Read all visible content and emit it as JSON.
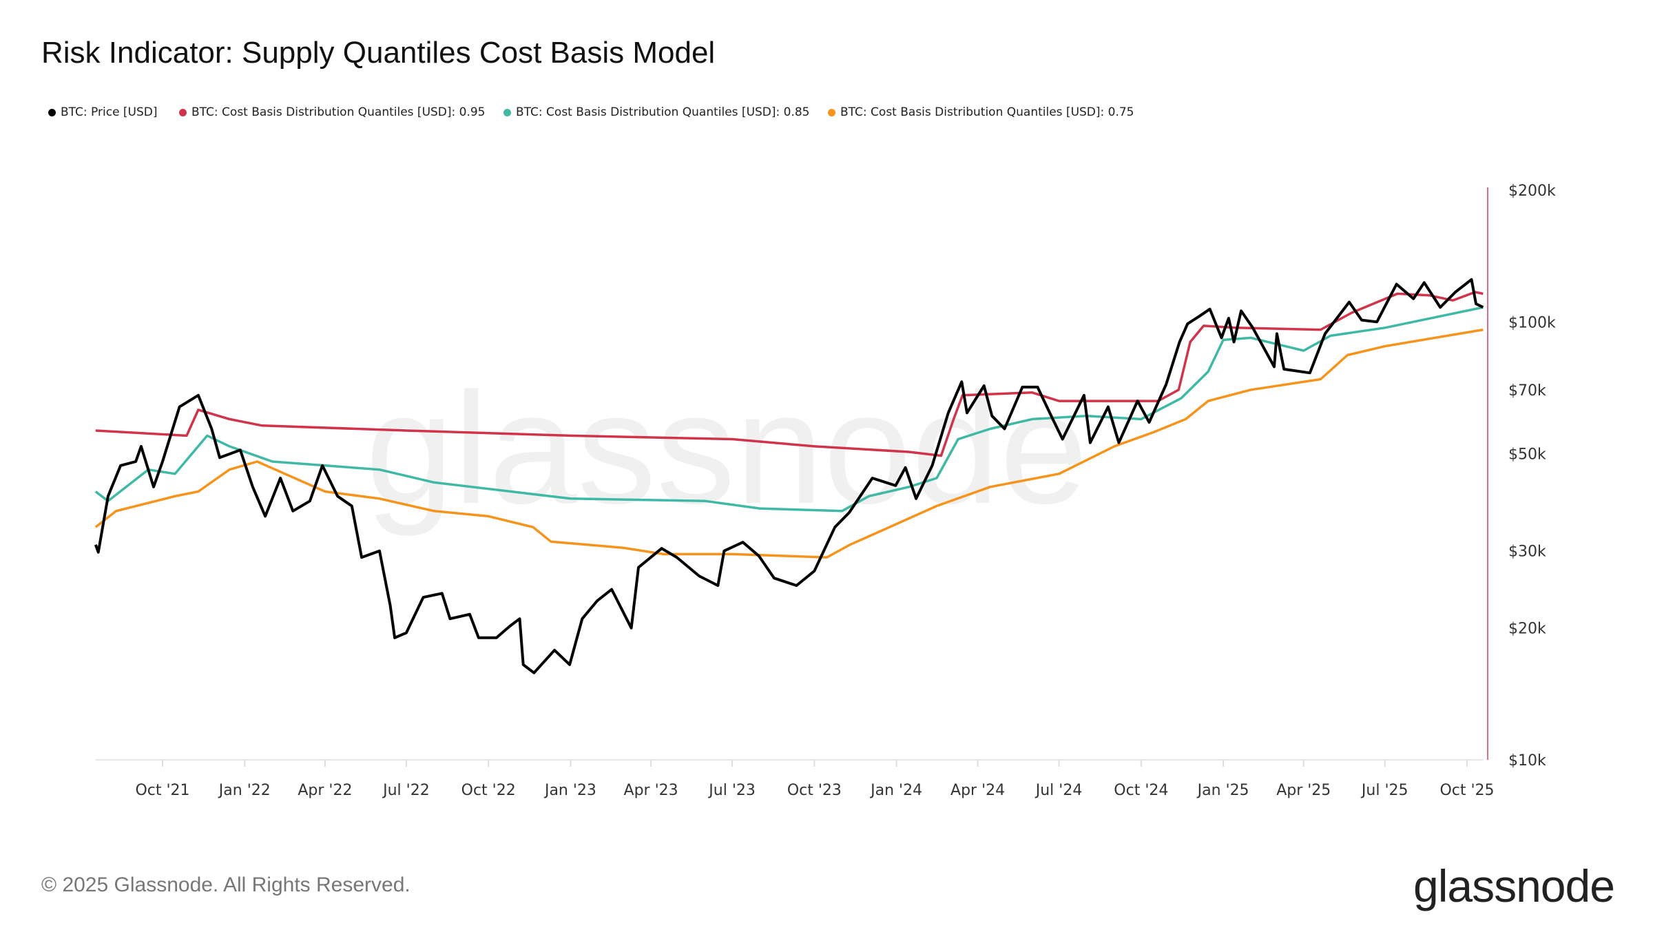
{
  "title": "Risk Indicator: Supply Quantiles Cost Basis Model",
  "copyright": "© 2025 Glassnode. All Rights Reserved.",
  "logo": "glassnode",
  "watermark": "glassnode",
  "chart_data": {
    "type": "line",
    "title": "Risk Indicator: Supply Quantiles Cost Basis Model",
    "y_scale": "log",
    "ylim": [
      10000,
      200000
    ],
    "y_ticks": [
      {
        "v": 200000,
        "label": "$200k"
      },
      {
        "v": 100000,
        "label": "$100k"
      },
      {
        "v": 70000,
        "label": "$70k"
      },
      {
        "v": 50000,
        "label": "$50k"
      },
      {
        "v": 30000,
        "label": "$30k"
      },
      {
        "v": 20000,
        "label": "$20k"
      },
      {
        "v": 10000,
        "label": "$10k"
      }
    ],
    "x_range": [
      "2021-07-18",
      "2025-10-19"
    ],
    "x_ticks": [
      {
        "d": "2021-10-01",
        "label": "Oct '21"
      },
      {
        "d": "2022-01-01",
        "label": "Jan '22"
      },
      {
        "d": "2022-04-01",
        "label": "Apr '22"
      },
      {
        "d": "2022-07-01",
        "label": "Jul '22"
      },
      {
        "d": "2022-10-01",
        "label": "Oct '22"
      },
      {
        "d": "2023-01-01",
        "label": "Jan '23"
      },
      {
        "d": "2023-04-01",
        "label": "Apr '23"
      },
      {
        "d": "2023-07-01",
        "label": "Jul '23"
      },
      {
        "d": "2023-10-01",
        "label": "Oct '23"
      },
      {
        "d": "2024-01-01",
        "label": "Jan '24"
      },
      {
        "d": "2024-04-01",
        "label": "Apr '24"
      },
      {
        "d": "2024-07-01",
        "label": "Jul '24"
      },
      {
        "d": "2024-10-01",
        "label": "Oct '24"
      },
      {
        "d": "2025-01-01",
        "label": "Jan '25"
      },
      {
        "d": "2025-04-01",
        "label": "Apr '25"
      },
      {
        "d": "2025-07-01",
        "label": "Jul '25"
      },
      {
        "d": "2025-10-01",
        "label": "Oct '25"
      }
    ],
    "grid": false,
    "legend_placement": "top-left",
    "series": [
      {
        "name": "BTC: Price [USD]",
        "color": "#000000",
        "points": [
          [
            "2021-07-18",
            31000
          ],
          [
            "2021-07-21",
            29800
          ],
          [
            "2021-08-01",
            40000
          ],
          [
            "2021-08-15",
            47000
          ],
          [
            "2021-09-01",
            48000
          ],
          [
            "2021-09-07",
            52000
          ],
          [
            "2021-09-21",
            42000
          ],
          [
            "2021-10-01",
            48000
          ],
          [
            "2021-10-20",
            64000
          ],
          [
            "2021-11-10",
            68000
          ],
          [
            "2021-11-25",
            57000
          ],
          [
            "2021-12-04",
            49000
          ],
          [
            "2021-12-27",
            51000
          ],
          [
            "2022-01-10",
            42000
          ],
          [
            "2022-01-24",
            36000
          ],
          [
            "2022-02-10",
            44000
          ],
          [
            "2022-02-24",
            37000
          ],
          [
            "2022-03-15",
            39000
          ],
          [
            "2022-03-29",
            47000
          ],
          [
            "2022-04-15",
            40000
          ],
          [
            "2022-05-01",
            38000
          ],
          [
            "2022-05-12",
            29000
          ],
          [
            "2022-06-01",
            30000
          ],
          [
            "2022-06-13",
            22500
          ],
          [
            "2022-06-18",
            19000
          ],
          [
            "2022-07-01",
            19500
          ],
          [
            "2022-07-20",
            23500
          ],
          [
            "2022-08-10",
            24000
          ],
          [
            "2022-08-19",
            21000
          ],
          [
            "2022-09-10",
            21500
          ],
          [
            "2022-09-20",
            19000
          ],
          [
            "2022-10-10",
            19000
          ],
          [
            "2022-10-25",
            20200
          ],
          [
            "2022-11-05",
            21000
          ],
          [
            "2022-11-09",
            16500
          ],
          [
            "2022-11-21",
            15800
          ],
          [
            "2022-12-14",
            17800
          ],
          [
            "2022-12-31",
            16500
          ],
          [
            "2023-01-14",
            21000
          ],
          [
            "2023-01-31",
            23100
          ],
          [
            "2023-02-16",
            24500
          ],
          [
            "2023-03-10",
            20000
          ],
          [
            "2023-03-18",
            27500
          ],
          [
            "2023-04-13",
            30400
          ],
          [
            "2023-04-30",
            29000
          ],
          [
            "2023-05-25",
            26300
          ],
          [
            "2023-06-15",
            25000
          ],
          [
            "2023-06-22",
            30000
          ],
          [
            "2023-07-13",
            31400
          ],
          [
            "2023-07-31",
            29200
          ],
          [
            "2023-08-17",
            26000
          ],
          [
            "2023-09-11",
            25000
          ],
          [
            "2023-10-01",
            27000
          ],
          [
            "2023-10-24",
            34000
          ],
          [
            "2023-11-09",
            36700
          ],
          [
            "2023-12-05",
            44000
          ],
          [
            "2023-12-31",
            42300
          ],
          [
            "2024-01-11",
            46500
          ],
          [
            "2024-01-23",
            39500
          ],
          [
            "2024-02-10",
            47000
          ],
          [
            "2024-02-28",
            62000
          ],
          [
            "2024-03-14",
            73000
          ],
          [
            "2024-03-20",
            62000
          ],
          [
            "2024-04-08",
            71500
          ],
          [
            "2024-04-17",
            61000
          ],
          [
            "2024-05-01",
            57000
          ],
          [
            "2024-05-21",
            71000
          ],
          [
            "2024-06-07",
            71000
          ],
          [
            "2024-06-24",
            60000
          ],
          [
            "2024-07-05",
            54000
          ],
          [
            "2024-07-29",
            68000
          ],
          [
            "2024-08-05",
            53000
          ],
          [
            "2024-08-25",
            64000
          ],
          [
            "2024-09-06",
            53000
          ],
          [
            "2024-09-27",
            66000
          ],
          [
            "2024-10-10",
            59000
          ],
          [
            "2024-10-29",
            72000
          ],
          [
            "2024-11-13",
            90000
          ],
          [
            "2024-11-22",
            99000
          ],
          [
            "2024-12-05",
            103000
          ],
          [
            "2024-12-17",
            107000
          ],
          [
            "2024-12-30",
            92000
          ],
          [
            "2025-01-07",
            102000
          ],
          [
            "2025-01-13",
            90000
          ],
          [
            "2025-01-21",
            106000
          ],
          [
            "2025-02-03",
            97000
          ],
          [
            "2025-02-27",
            79000
          ],
          [
            "2025-03-02",
            94000
          ],
          [
            "2025-03-10",
            78000
          ],
          [
            "2025-04-08",
            76500
          ],
          [
            "2025-04-25",
            94000
          ],
          [
            "2025-05-22",
            111000
          ],
          [
            "2025-06-05",
            101000
          ],
          [
            "2025-06-22",
            100000
          ],
          [
            "2025-07-14",
            122000
          ],
          [
            "2025-08-02",
            113000
          ],
          [
            "2025-08-14",
            123000
          ],
          [
            "2025-09-01",
            108000
          ],
          [
            "2025-09-18",
            117000
          ],
          [
            "2025-10-06",
            125000
          ],
          [
            "2025-10-11",
            110000
          ],
          [
            "2025-10-19",
            108000
          ]
        ]
      },
      {
        "name": "BTC: Cost Basis Distribution Quantiles [USD]: 0.95",
        "color": "#d1334b",
        "points": [
          [
            "2021-07-18",
            56500
          ],
          [
            "2021-10-28",
            55000
          ],
          [
            "2021-11-10",
            63000
          ],
          [
            "2021-12-15",
            60000
          ],
          [
            "2022-01-20",
            58000
          ],
          [
            "2022-07-01",
            56500
          ],
          [
            "2023-01-01",
            55000
          ],
          [
            "2023-07-01",
            54000
          ],
          [
            "2023-10-01",
            52000
          ],
          [
            "2024-01-15",
            50500
          ],
          [
            "2024-02-20",
            49500
          ],
          [
            "2024-03-05",
            60000
          ],
          [
            "2024-03-15",
            68000
          ],
          [
            "2024-06-01",
            69000
          ],
          [
            "2024-07-01",
            66000
          ],
          [
            "2024-10-20",
            66000
          ],
          [
            "2024-11-12",
            70000
          ],
          [
            "2024-11-25",
            90000
          ],
          [
            "2024-12-10",
            98000
          ],
          [
            "2025-01-15",
            97000
          ],
          [
            "2025-04-20",
            96000
          ],
          [
            "2025-05-25",
            105000
          ],
          [
            "2025-07-15",
            116000
          ],
          [
            "2025-08-20",
            115000
          ],
          [
            "2025-09-15",
            112000
          ],
          [
            "2025-10-10",
            117000
          ],
          [
            "2025-10-19",
            116000
          ]
        ]
      },
      {
        "name": "BTC: Cost Basis Distribution Quantiles [USD]: 0.85",
        "color": "#3fb8a5",
        "points": [
          [
            "2021-07-18",
            41000
          ],
          [
            "2021-08-01",
            39000
          ],
          [
            "2021-09-15",
            46000
          ],
          [
            "2021-10-15",
            45000
          ],
          [
            "2021-11-20",
            55000
          ],
          [
            "2021-12-15",
            52000
          ],
          [
            "2022-02-01",
            48000
          ],
          [
            "2022-06-01",
            46000
          ],
          [
            "2022-08-01",
            43000
          ],
          [
            "2023-01-01",
            39500
          ],
          [
            "2023-06-01",
            39000
          ],
          [
            "2023-08-01",
            37500
          ],
          [
            "2023-11-01",
            37000
          ],
          [
            "2023-12-01",
            40000
          ],
          [
            "2024-01-15",
            42000
          ],
          [
            "2024-02-15",
            44000
          ],
          [
            "2024-03-10",
            54000
          ],
          [
            "2024-04-15",
            57000
          ],
          [
            "2024-06-01",
            60000
          ],
          [
            "2024-08-01",
            61000
          ],
          [
            "2024-10-01",
            60000
          ],
          [
            "2024-11-15",
            67000
          ],
          [
            "2024-12-15",
            77000
          ],
          [
            "2025-01-01",
            91000
          ],
          [
            "2025-02-01",
            92000
          ],
          [
            "2025-04-01",
            86000
          ],
          [
            "2025-05-01",
            93000
          ],
          [
            "2025-07-01",
            97000
          ],
          [
            "2025-10-19",
            108000
          ]
        ]
      },
      {
        "name": "BTC: Cost Basis Distribution Quantiles [USD]: 0.75",
        "color": "#f7931a",
        "points": [
          [
            "2021-07-18",
            34000
          ],
          [
            "2021-08-10",
            37000
          ],
          [
            "2021-10-15",
            40000
          ],
          [
            "2021-11-10",
            41000
          ],
          [
            "2021-12-15",
            46000
          ],
          [
            "2022-01-15",
            48000
          ],
          [
            "2022-04-01",
            41000
          ],
          [
            "2022-06-01",
            39500
          ],
          [
            "2022-08-01",
            37000
          ],
          [
            "2022-10-01",
            36000
          ],
          [
            "2022-11-20",
            34000
          ],
          [
            "2022-12-10",
            31500
          ],
          [
            "2023-03-01",
            30500
          ],
          [
            "2023-04-15",
            29500
          ],
          [
            "2023-07-01",
            29500
          ],
          [
            "2023-10-15",
            29000
          ],
          [
            "2023-11-10",
            31000
          ],
          [
            "2023-12-10",
            33000
          ],
          [
            "2024-02-15",
            38000
          ],
          [
            "2024-04-15",
            42000
          ],
          [
            "2024-07-01",
            45000
          ],
          [
            "2024-09-01",
            52000
          ],
          [
            "2024-10-15",
            56000
          ],
          [
            "2024-11-20",
            60000
          ],
          [
            "2024-12-15",
            66000
          ],
          [
            "2025-02-01",
            70000
          ],
          [
            "2025-04-20",
            74000
          ],
          [
            "2025-05-20",
            84000
          ],
          [
            "2025-07-01",
            88000
          ],
          [
            "2025-10-19",
            96000
          ]
        ]
      }
    ]
  }
}
